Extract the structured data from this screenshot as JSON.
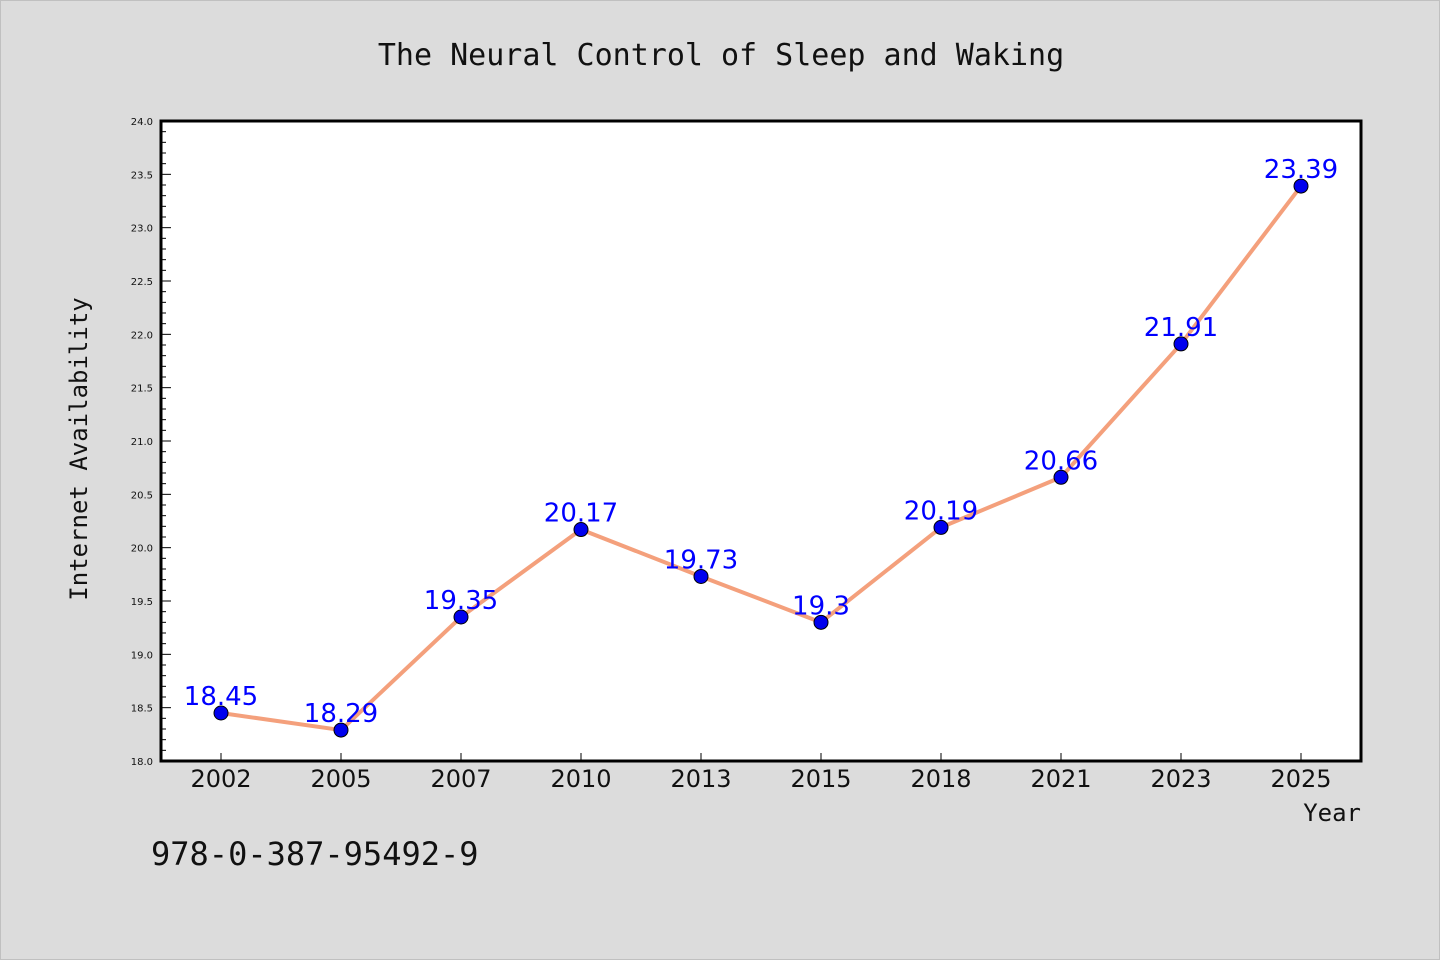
{
  "chart_data": {
    "type": "line",
    "title": "The Neural Control of Sleep and Waking",
    "xlabel": "Year",
    "ylabel": "Internet Availability",
    "categories": [
      "2002",
      "2005",
      "2007",
      "2010",
      "2013",
      "2015",
      "2018",
      "2021",
      "2023",
      "2025"
    ],
    "series": [
      {
        "values": [
          18.45,
          18.29,
          19.35,
          20.17,
          19.73,
          19.3,
          20.19,
          20.66,
          21.91,
          23.39
        ],
        "data_labels": [
          "18.45",
          "18.29",
          "19.35",
          "20.17",
          "19.73",
          "19.3",
          "20.19",
          "20.66",
          "21.91",
          "23.39"
        ]
      }
    ],
    "ylim": [
      18.0,
      24.0
    ],
    "yticks": [
      "18.0",
      "18.5",
      "19.0",
      "19.5",
      "20.0",
      "20.5",
      "21.0",
      "21.5",
      "22.0",
      "22.5",
      "23.0",
      "23.5",
      "24.0"
    ],
    "grid": false,
    "line_color": "#f4a07c",
    "marker_color": "#0000ee",
    "label_color": "#0000ff"
  },
  "footer": {
    "isbn": "978-0-387-95492-9"
  }
}
